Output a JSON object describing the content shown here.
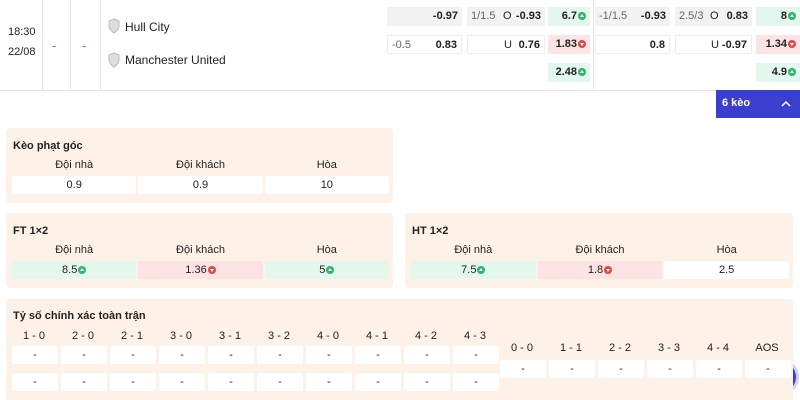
{
  "match": {
    "time": "18:30",
    "date": "22/08",
    "home_score": "-",
    "away_score": "-",
    "home_team": "Hull City",
    "away_team": "Manchester United"
  },
  "odds": {
    "rows": [
      [
        {
          "value": "-0.97"
        },
        {
          "line": "1/1.5",
          "side": "O",
          "value": "-0.93"
        },
        {
          "value": "6.7",
          "trend": "up"
        },
        {
          "line": "-1/1.5",
          "value": "-0.93"
        },
        {
          "line": "2.5/3",
          "side": "O",
          "value": "0.83"
        },
        {
          "value": "8",
          "trend": "up"
        }
      ],
      [
        {
          "line": "-0.5",
          "value": "0.83"
        },
        {
          "side": "U",
          "value": "0.76"
        },
        {
          "value": "1.83",
          "trend": "down"
        },
        {
          "value": "0.8"
        },
        {
          "side": "U",
          "value": "-0.97"
        },
        {
          "value": "1.34",
          "trend": "down"
        }
      ],
      [
        null,
        null,
        {
          "value": "2.48",
          "trend": "up"
        },
        null,
        null,
        {
          "value": "4.9",
          "trend": "up"
        }
      ]
    ]
  },
  "more_button": "6 kèo",
  "markets": [
    {
      "title": "Kèo phạt góc",
      "headers": [
        "Đội nhà",
        "Đội khách",
        "Hòa"
      ],
      "values": [
        {
          "value": "0.9"
        },
        {
          "value": "0.9"
        },
        {
          "value": "10"
        }
      ]
    },
    {
      "title": "FT 1×2",
      "headers": [
        "Đội nhà",
        "Đội khách",
        "Hòa"
      ],
      "values": [
        {
          "value": "8.5",
          "trend": "up"
        },
        {
          "value": "1.36",
          "trend": "down"
        },
        {
          "value": "5",
          "trend": "up"
        }
      ]
    },
    {
      "title": "HT 1×2",
      "headers": [
        "Đội nhà",
        "Đội khách",
        "Hòa"
      ],
      "values": [
        {
          "value": "7.5",
          "trend": "up"
        },
        {
          "value": "1.8",
          "trend": "down"
        },
        {
          "value": "2.5"
        }
      ]
    }
  ],
  "correct_score": {
    "title": "Tỷ số chính xác toàn trận",
    "columns": [
      {
        "score": "1 - 0",
        "values": [
          "-",
          "-"
        ]
      },
      {
        "score": "2 - 0",
        "values": [
          "-",
          "-"
        ]
      },
      {
        "score": "2 - 1",
        "values": [
          "-",
          "-"
        ]
      },
      {
        "score": "3 - 0",
        "values": [
          "-",
          "-"
        ]
      },
      {
        "score": "3 - 1",
        "values": [
          "-",
          "-"
        ]
      },
      {
        "score": "3 - 2",
        "values": [
          "-",
          "-"
        ]
      },
      {
        "score": "4 - 0",
        "values": [
          "-",
          "-"
        ]
      },
      {
        "score": "4 - 1",
        "values": [
          "-",
          "-"
        ]
      },
      {
        "score": "4 - 2",
        "values": [
          "-",
          "-"
        ]
      },
      {
        "score": "4 - 3",
        "values": [
          "-",
          "-"
        ]
      }
    ],
    "draws": [
      {
        "score": "0 - 0",
        "value": "-"
      },
      {
        "score": "1 - 1",
        "value": "-"
      },
      {
        "score": "2 - 2",
        "value": "-"
      },
      {
        "score": "3 - 3",
        "value": "-"
      },
      {
        "score": "4 - 4",
        "value": "-"
      },
      {
        "score": "AOS",
        "value": "-"
      }
    ]
  }
}
